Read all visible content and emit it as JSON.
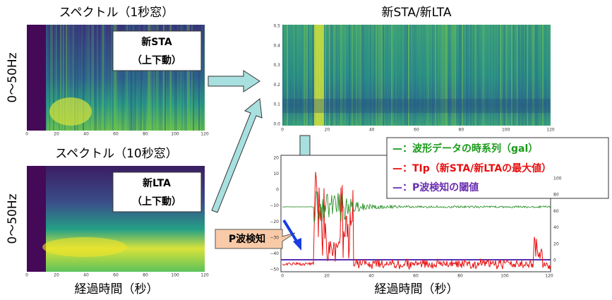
{
  "spectrogram_1s": {
    "title": "スペクトル（1秒窓）",
    "y_label": "0～50Hz",
    "label": "新STA",
    "sublabel": "（上下動）",
    "xticks": [
      "0",
      "20",
      "40",
      "60",
      "80",
      "100",
      "120"
    ]
  },
  "spectrogram_10s": {
    "title": "スペクトル（10秒窓）",
    "y_label": "0～50Hz",
    "label": "新LTA",
    "sublabel": "（上下動）",
    "xticks": [
      "0",
      "20",
      "40",
      "60",
      "80",
      "100",
      "120"
    ]
  },
  "left_x_label": "経過時間（秒）",
  "ratio_panel": {
    "title": "新STA/新LTA",
    "xticks": [
      "0",
      "20",
      "40",
      "60",
      "80",
      "100",
      "120"
    ],
    "yticks": [
      "0.5",
      "0.4",
      "0.3",
      "0.2",
      "0.1",
      "0.0"
    ]
  },
  "wave_panel": {
    "legend": [
      "—：波形データの時系列（gal）",
      "—：TIp（新STA/新LTAの最大値）",
      "—：P波検知の閾値"
    ],
    "yticks": [
      "20",
      "10",
      "0",
      "−10",
      "−20",
      "−30",
      "−40",
      "−50"
    ],
    "y2ticks": [
      "100",
      "80",
      "60",
      "40",
      "20",
      "0"
    ],
    "xticks": [
      "0",
      "20",
      "40",
      "60",
      "80",
      "100",
      "120"
    ]
  },
  "callout": "P波検知",
  "right_x_label": "経過時間（秒）"
}
